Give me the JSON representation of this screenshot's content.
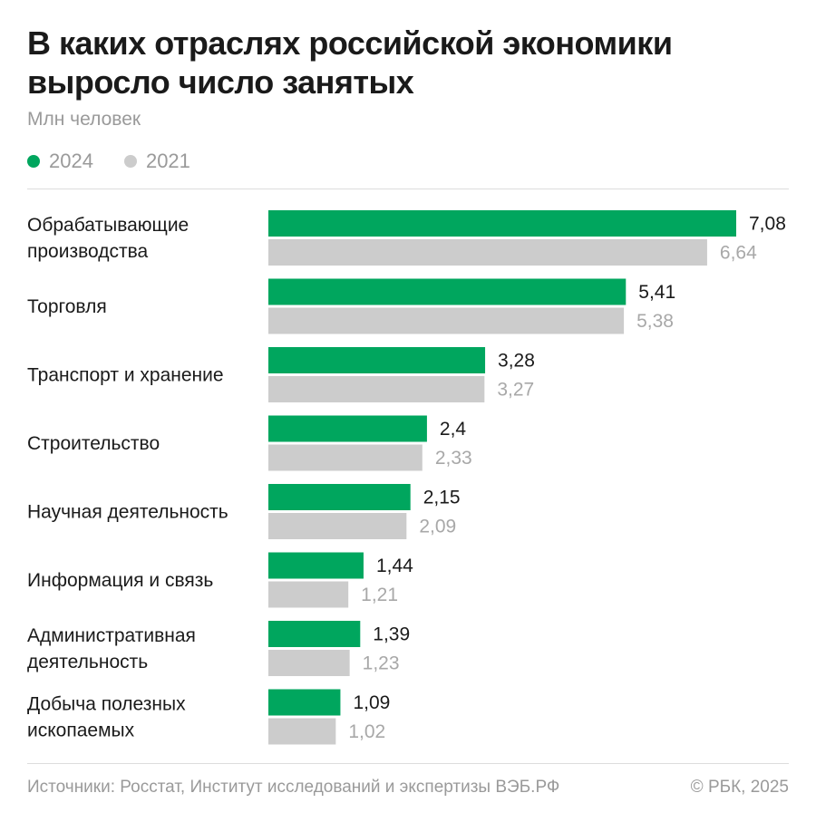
{
  "header": {
    "title": "В каких отраслях российской экономики выросло число занятых",
    "subtitle": "Млн человек"
  },
  "legend": {
    "items": [
      {
        "label": "2024",
        "color": "#00a65e"
      },
      {
        "label": "2021",
        "color": "#cccccc"
      }
    ]
  },
  "chart_data": {
    "type": "bar",
    "orientation": "horizontal",
    "unit": "Млн человек",
    "categories": [
      [
        "Обрабатывающие",
        "производства"
      ],
      [
        "Торговля"
      ],
      [
        "Транспорт и хранение"
      ],
      [
        "Строительство"
      ],
      [
        "Научная деятельность"
      ],
      [
        "Информация и связь"
      ],
      [
        "Административная",
        "деятельность"
      ],
      [
        "Добыча полезных",
        "ископаемых"
      ]
    ],
    "series": [
      {
        "name": "2024",
        "color": "#00a65e",
        "label_color": "#1a1a1a",
        "values": [
          7.08,
          5.41,
          3.28,
          2.4,
          2.15,
          1.44,
          1.39,
          1.09
        ],
        "labels": [
          "7,08",
          "5,41",
          "3,28",
          "2,4",
          "2,15",
          "1,44",
          "1,39",
          "1,09"
        ]
      },
      {
        "name": "2021",
        "color": "#cccccc",
        "label_color": "#a8a8a8",
        "values": [
          6.64,
          5.38,
          3.27,
          2.33,
          2.09,
          1.21,
          1.23,
          1.02
        ],
        "labels": [
          "6,64",
          "5,38",
          "3,27",
          "2,33",
          "2,09",
          "1,21",
          "1,23",
          "1,02"
        ]
      }
    ],
    "xlim": [
      0,
      7.08
    ],
    "grid": false,
    "legend_position": "top-left"
  },
  "footer": {
    "source": "Источники: Росстат, Институт исследований и экспертизы ВЭБ.РФ",
    "copyright": "© РБК, 2025"
  }
}
